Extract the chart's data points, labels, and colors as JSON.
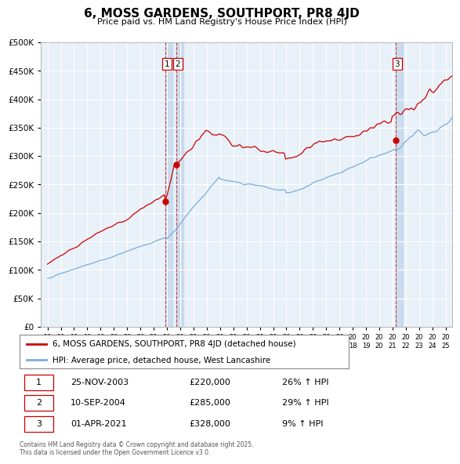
{
  "title": "6, MOSS GARDENS, SOUTHPORT, PR8 4JD",
  "subtitle": "Price paid vs. HM Land Registry's House Price Index (HPI)",
  "legend_house": "6, MOSS GARDENS, SOUTHPORT, PR8 4JD (detached house)",
  "legend_hpi": "HPI: Average price, detached house, West Lancashire",
  "transactions": [
    {
      "num": 1,
      "date": "25-NOV-2003",
      "price": "£220,000",
      "hpi": "26% ↑ HPI",
      "x_year": 2003.9,
      "price_val": 220000
    },
    {
      "num": 2,
      "date": "10-SEP-2004",
      "price": "£285,000",
      "hpi": "29% ↑ HPI",
      "x_year": 2004.72,
      "price_val": 285000
    },
    {
      "num": 3,
      "date": "01-APR-2021",
      "price": "£328,000",
      "hpi": "9% ↑ HPI",
      "x_year": 2021.25,
      "price_val": 328000
    }
  ],
  "footer": "Contains HM Land Registry data © Crown copyright and database right 2025.\nThis data is licensed under the Open Government Licence v3.0.",
  "house_color": "#cc0000",
  "hpi_color": "#7aaedb",
  "vline_color": "#cc3333",
  "plot_bg": "#e8f0f8",
  "grid_color": "#ffffff",
  "ylim": [
    0,
    500000
  ],
  "yticks": [
    0,
    50000,
    100000,
    150000,
    200000,
    250000,
    300000,
    350000,
    400000,
    450000,
    500000
  ],
  "xmin": 1994.5,
  "xmax": 2025.5
}
